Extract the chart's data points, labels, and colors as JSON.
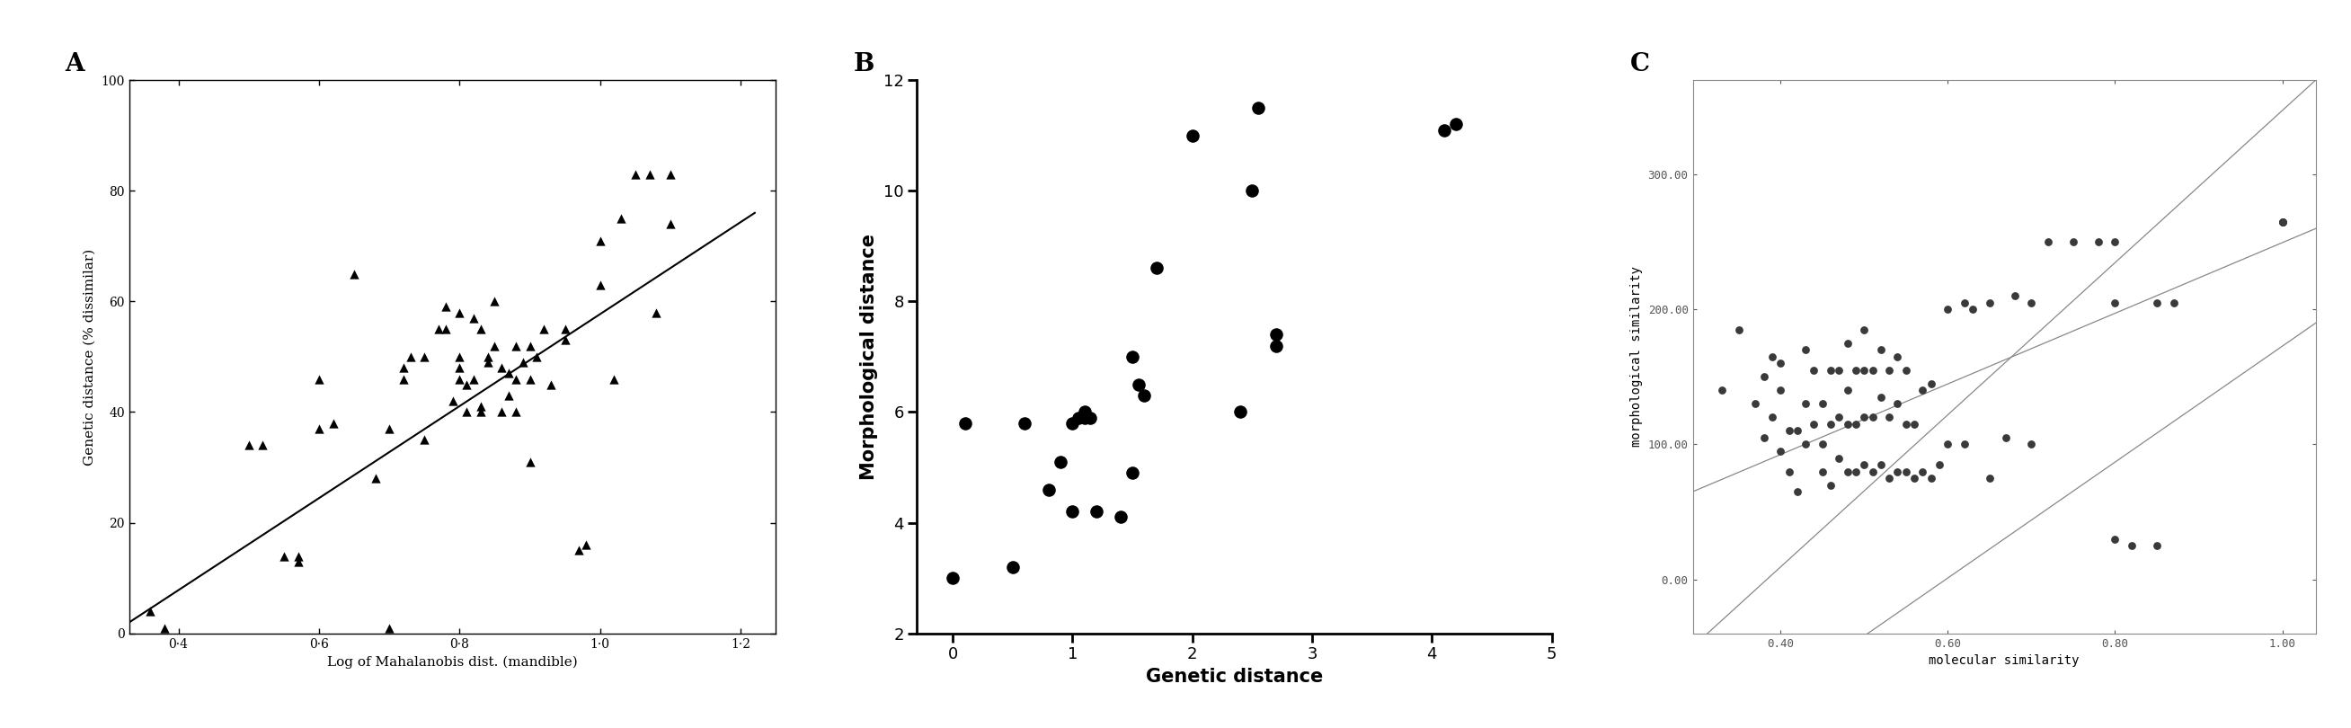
{
  "panel_A": {
    "label": "A",
    "xlabel": "Log of Mahalanobis dist. (mandible)",
    "ylabel": "Genetic distance (% dissimilar)",
    "xlim": [
      0.33,
      1.25
    ],
    "ylim": [
      0,
      100
    ],
    "xticks": [
      0.4,
      0.6,
      0.8,
      1.0,
      1.2
    ],
    "xticklabels": [
      "0·4",
      "0·6",
      "0·8",
      "1·0",
      "1·2"
    ],
    "yticks": [
      0,
      20,
      40,
      60,
      80,
      100
    ],
    "line_x": [
      0.33,
      1.22
    ],
    "line_y": [
      2.0,
      76.0
    ],
    "scatter_x": [
      0.36,
      0.38,
      0.5,
      0.52,
      0.55,
      0.57,
      0.57,
      0.6,
      0.6,
      0.62,
      0.65,
      0.68,
      0.7,
      0.7,
      0.72,
      0.72,
      0.73,
      0.75,
      0.75,
      0.77,
      0.78,
      0.78,
      0.79,
      0.8,
      0.8,
      0.8,
      0.8,
      0.81,
      0.81,
      0.82,
      0.82,
      0.83,
      0.83,
      0.83,
      0.84,
      0.84,
      0.85,
      0.85,
      0.86,
      0.86,
      0.87,
      0.87,
      0.88,
      0.88,
      0.88,
      0.89,
      0.9,
      0.9,
      0.9,
      0.91,
      0.92,
      0.93,
      0.95,
      0.95,
      0.97,
      0.98,
      1.0,
      1.0,
      1.02,
      1.03,
      1.05,
      1.07,
      1.08,
      1.1,
      1.1
    ],
    "scatter_y": [
      4,
      1,
      34,
      34,
      14,
      13,
      14,
      37,
      46,
      38,
      65,
      28,
      1,
      37,
      46,
      48,
      50,
      50,
      35,
      55,
      55,
      59,
      42,
      46,
      48,
      50,
      58,
      40,
      45,
      46,
      57,
      55,
      40,
      41,
      49,
      50,
      52,
      60,
      40,
      48,
      43,
      47,
      40,
      46,
      52,
      49,
      31,
      46,
      52,
      50,
      55,
      45,
      53,
      55,
      15,
      16,
      63,
      71,
      46,
      75,
      83,
      83,
      58,
      83,
      74
    ]
  },
  "panel_B": {
    "label": "B",
    "xlabel": "Genetic distance",
    "ylabel": "Morphological distance",
    "xlim": [
      -0.3,
      5
    ],
    "ylim": [
      2,
      12
    ],
    "xticks": [
      0,
      1,
      2,
      3,
      4,
      5
    ],
    "yticks": [
      2,
      4,
      6,
      8,
      10,
      12
    ],
    "scatter_x": [
      0.0,
      0.1,
      0.5,
      0.6,
      0.8,
      0.9,
      1.0,
      1.0,
      1.05,
      1.1,
      1.1,
      1.15,
      1.2,
      1.4,
      1.5,
      1.5,
      1.55,
      1.6,
      1.7,
      2.0,
      2.4,
      2.5,
      2.55,
      2.7,
      2.7,
      4.1,
      4.2
    ],
    "scatter_y": [
      3.0,
      5.8,
      3.2,
      5.8,
      4.6,
      5.1,
      4.2,
      5.8,
      5.9,
      5.9,
      6.0,
      5.9,
      4.2,
      4.1,
      4.9,
      7.0,
      6.5,
      6.3,
      8.6,
      11.0,
      6.0,
      10.0,
      11.5,
      7.2,
      7.4,
      11.1,
      11.2
    ]
  },
  "panel_C": {
    "label": "C",
    "xlabel": "molecular similarity",
    "ylabel": "morphological similarity",
    "xlim": [
      0.295,
      1.04
    ],
    "ylim": [
      -40,
      370
    ],
    "xticks": [
      0.4,
      0.6,
      0.8,
      1.0
    ],
    "xticklabels": [
      "0.40",
      "0.60",
      "0.80",
      "1.00"
    ],
    "yticks": [
      0.0,
      100.0,
      200.0,
      300.0
    ],
    "yticklabels": [
      "0.00",
      "100.00",
      "200.00",
      "300.00"
    ],
    "lines": [
      {
        "x": [
          0.295,
          1.04
        ],
        "y": [
          -50,
          370
        ]
      },
      {
        "x": [
          0.295,
          1.04
        ],
        "y": [
          65,
          260
        ]
      },
      {
        "x": [
          0.295,
          1.04
        ],
        "y": [
          -130,
          190
        ]
      }
    ],
    "scatter_x": [
      0.33,
      0.35,
      0.37,
      0.38,
      0.38,
      0.39,
      0.39,
      0.4,
      0.4,
      0.4,
      0.41,
      0.41,
      0.42,
      0.42,
      0.43,
      0.43,
      0.43,
      0.44,
      0.44,
      0.45,
      0.45,
      0.45,
      0.46,
      0.46,
      0.46,
      0.47,
      0.47,
      0.47,
      0.48,
      0.48,
      0.48,
      0.48,
      0.49,
      0.49,
      0.49,
      0.5,
      0.5,
      0.5,
      0.5,
      0.51,
      0.51,
      0.51,
      0.52,
      0.52,
      0.52,
      0.53,
      0.53,
      0.53,
      0.54,
      0.54,
      0.54,
      0.55,
      0.55,
      0.55,
      0.56,
      0.56,
      0.57,
      0.57,
      0.58,
      0.58,
      0.59,
      0.6,
      0.6,
      0.62,
      0.62,
      0.63,
      0.65,
      0.65,
      0.67,
      0.68,
      0.7,
      0.7,
      0.72,
      0.75,
      0.78,
      0.8,
      0.8,
      0.8,
      0.82,
      0.85,
      0.85,
      0.87,
      1.0,
      1.0,
      1.0
    ],
    "scatter_y": [
      140,
      185,
      130,
      105,
      150,
      120,
      165,
      95,
      140,
      160,
      80,
      110,
      65,
      110,
      100,
      130,
      170,
      115,
      155,
      80,
      100,
      130,
      70,
      115,
      155,
      90,
      120,
      155,
      80,
      115,
      140,
      175,
      80,
      115,
      155,
      85,
      120,
      155,
      185,
      80,
      120,
      155,
      85,
      135,
      170,
      75,
      120,
      155,
      80,
      130,
      165,
      80,
      115,
      155,
      75,
      115,
      80,
      140,
      75,
      145,
      85,
      100,
      200,
      100,
      205,
      200,
      75,
      205,
      105,
      210,
      100,
      205,
      250,
      250,
      250,
      205,
      250,
      30,
      25,
      25,
      205,
      205,
      265,
      265,
      265
    ]
  },
  "bg_color": "#ffffff",
  "marker_color_A": "#000000",
  "marker_color_B": "#000000",
  "marker_color_C": "#3a3a3a",
  "line_color_A": "#000000",
  "line_color_C": "#888888"
}
